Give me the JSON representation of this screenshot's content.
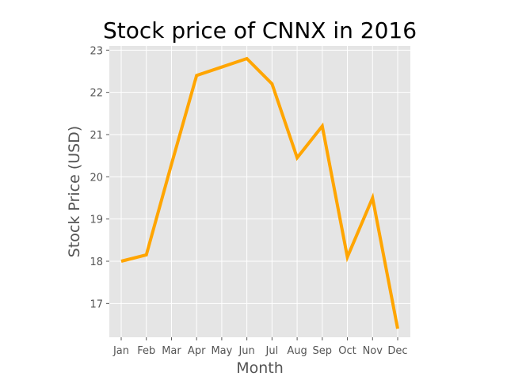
{
  "chart_data": {
    "type": "line",
    "title": "Stock price of CNNX in 2016",
    "xlabel": "Month",
    "ylabel": "Stock Price (USD)",
    "categories": [
      "Jan",
      "Feb",
      "Mar",
      "Apr",
      "May",
      "Jun",
      "Jul",
      "Aug",
      "Sep",
      "Oct",
      "Nov",
      "Dec"
    ],
    "series": [
      {
        "values": [
          18.0,
          18.15,
          20.3,
          22.4,
          22.6,
          22.8,
          22.2,
          20.45,
          21.2,
          18.1,
          19.5,
          16.4
        ],
        "color": "#ffa500"
      }
    ],
    "yticks": [
      17,
      18,
      19,
      20,
      21,
      22,
      23
    ],
    "ylim": [
      16.2,
      23.1
    ],
    "grid": true,
    "background": "#e5e5e5",
    "legend": "none"
  }
}
